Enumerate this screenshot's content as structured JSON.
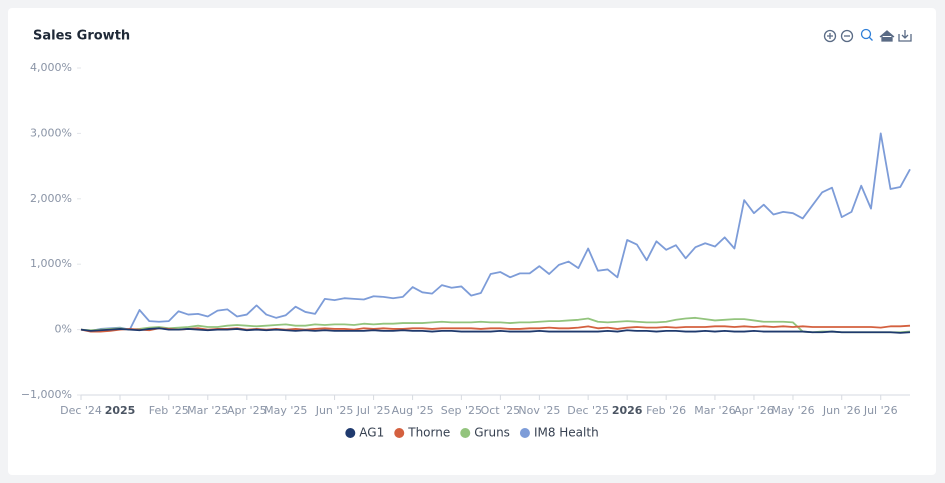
{
  "chart_data": {
    "type": "line",
    "title": "Sales Growth",
    "categories": [
      "Dec '24",
      null,
      null,
      null,
      "2025",
      null,
      null,
      null,
      null,
      "Feb '25",
      null,
      null,
      null,
      "Mar '25",
      null,
      null,
      null,
      "Apr '25",
      null,
      null,
      null,
      "May '25",
      null,
      null,
      null,
      null,
      "Jun '25",
      null,
      null,
      null,
      "Jul '25",
      null,
      null,
      null,
      "Aug '25",
      null,
      null,
      null,
      null,
      "Sep '25",
      null,
      null,
      null,
      "Oct '25",
      null,
      null,
      null,
      "Nov '25",
      null,
      null,
      null,
      null,
      "Dec '25",
      null,
      null,
      null,
      "2026",
      null,
      null,
      null,
      "Feb '26",
      null,
      null,
      null,
      null,
      "Mar '26",
      null,
      null,
      null,
      "Apr '26",
      null,
      null,
      null,
      "May '26",
      null,
      null,
      null,
      null,
      "Jun '26",
      null,
      null,
      null,
      "Jul '26",
      null,
      null,
      null
    ],
    "series": [
      {
        "name": "AG1",
        "color": "#1f3a6e",
        "values": [
          0,
          -20,
          -10,
          0,
          10,
          0,
          -10,
          10,
          20,
          0,
          0,
          10,
          0,
          -10,
          0,
          0,
          10,
          -10,
          0,
          -10,
          0,
          -10,
          -20,
          -10,
          -20,
          -10,
          -20,
          -20,
          -20,
          -20,
          -10,
          -20,
          -20,
          -10,
          -20,
          -20,
          -30,
          -20,
          -20,
          -30,
          -30,
          -30,
          -30,
          -20,
          -30,
          -30,
          -30,
          -20,
          -30,
          -30,
          -30,
          -30,
          -30,
          -30,
          -20,
          -30,
          -10,
          -20,
          -20,
          -30,
          -20,
          -20,
          -30,
          -30,
          -20,
          -30,
          -20,
          -30,
          -30,
          -20,
          -30,
          -30,
          -30,
          -30,
          -30,
          -40,
          -40,
          -30,
          -40,
          -40,
          -40,
          -40,
          -40,
          -40,
          -50,
          -40
        ]
      },
      {
        "name": "Thorne",
        "color": "#d4603f",
        "values": [
          0,
          -30,
          -30,
          -20,
          0,
          10,
          0,
          -10,
          20,
          10,
          0,
          10,
          20,
          0,
          10,
          10,
          20,
          0,
          10,
          0,
          10,
          0,
          10,
          0,
          10,
          20,
          10,
          10,
          0,
          20,
          10,
          20,
          10,
          10,
          20,
          20,
          10,
          20,
          20,
          20,
          20,
          10,
          20,
          20,
          10,
          10,
          20,
          20,
          30,
          20,
          20,
          30,
          50,
          20,
          30,
          10,
          30,
          40,
          30,
          30,
          40,
          30,
          40,
          40,
          40,
          50,
          50,
          40,
          50,
          40,
          50,
          40,
          50,
          40,
          50,
          40,
          40,
          40,
          40,
          40,
          40,
          40,
          30,
          50,
          50,
          60
        ]
      },
      {
        "name": "Gruns",
        "color": "#93c47d",
        "values": [
          0,
          -10,
          0,
          10,
          20,
          0,
          10,
          30,
          40,
          20,
          30,
          40,
          60,
          40,
          40,
          60,
          70,
          60,
          50,
          60,
          70,
          80,
          60,
          60,
          80,
          70,
          80,
          80,
          70,
          90,
          80,
          90,
          90,
          100,
          100,
          100,
          110,
          120,
          110,
          110,
          110,
          120,
          110,
          110,
          100,
          110,
          110,
          120,
          130,
          130,
          140,
          150,
          170,
          120,
          110,
          120,
          130,
          120,
          110,
          110,
          120,
          150,
          170,
          180,
          160,
          140,
          150,
          160,
          160,
          140,
          120,
          120,
          120,
          110,
          -30,
          -40,
          -30,
          -30,
          -40,
          -40,
          -40,
          -40,
          -40,
          -40,
          -40,
          -30
        ]
      },
      {
        "name": "IM8 Health",
        "color": "#7d9cd8",
        "values": [
          0,
          -20,
          10,
          20,
          30,
          0,
          300,
          130,
          120,
          130,
          280,
          230,
          240,
          200,
          290,
          310,
          200,
          230,
          370,
          230,
          180,
          220,
          350,
          270,
          240,
          470,
          450,
          480,
          470,
          460,
          510,
          500,
          480,
          500,
          650,
          570,
          550,
          680,
          640,
          660,
          520,
          560,
          850,
          880,
          800,
          860,
          860,
          970,
          850,
          990,
          1040,
          940,
          1240,
          900,
          920,
          800,
          1370,
          1300,
          1060,
          1350,
          1220,
          1290,
          1090,
          1260,
          1320,
          1270,
          1410,
          1240,
          1980,
          1780,
          1910,
          1760,
          1800,
          1780,
          1700,
          1900,
          2100,
          2170,
          1720,
          1800,
          2200,
          1850,
          3000,
          2150,
          2180,
          2450
        ]
      }
    ],
    "ylim": [
      -1000,
      4000
    ],
    "yticks": [
      {
        "value": -1000,
        "label": "−1,000%"
      },
      {
        "value": 0,
        "label": "0%"
      },
      {
        "value": 1000,
        "label": "1,000%"
      },
      {
        "value": 2000,
        "label": "2,000%"
      },
      {
        "value": 3000,
        "label": "3,000%"
      },
      {
        "value": 4000,
        "label": "4,000%"
      }
    ],
    "grid": false,
    "legend": "bottom"
  }
}
